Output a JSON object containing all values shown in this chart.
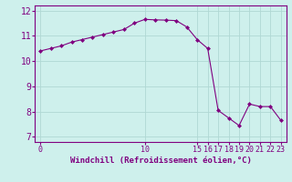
{
  "x": [
    0,
    1,
    2,
    3,
    4,
    5,
    6,
    7,
    8,
    9,
    10,
    11,
    12,
    13,
    14,
    15,
    16,
    17,
    18,
    19,
    20,
    21,
    22,
    23
  ],
  "y": [
    10.4,
    10.5,
    10.6,
    10.75,
    10.85,
    10.95,
    11.05,
    11.15,
    11.25,
    11.5,
    11.65,
    11.63,
    11.62,
    11.6,
    11.35,
    10.85,
    10.5,
    8.05,
    7.75,
    7.45,
    8.3,
    8.2,
    8.2,
    7.65
  ],
  "line_color": "#800080",
  "marker": "D",
  "markersize": 2.0,
  "linewidth": 0.8,
  "background_color": "#cef0ec",
  "grid_color": "#b0d8d4",
  "xlabel": "Windchill (Refroidissement éolien,°C)",
  "xlabel_color": "#800080",
  "tick_color": "#800080",
  "xlim": [
    -0.5,
    23.5
  ],
  "ylim": [
    6.8,
    12.2
  ],
  "yticks": [
    7,
    8,
    9,
    10,
    11,
    12
  ],
  "xticks": [
    0,
    10,
    15,
    16,
    17,
    18,
    19,
    20,
    21,
    22,
    23
  ],
  "xtick_labels": [
    "0",
    "10",
    "15",
    "16",
    "17",
    "18",
    "19",
    "20",
    "21",
    "22",
    "23"
  ],
  "title_color": "#800080",
  "title_fontsize": 5.5,
  "xlabel_fontsize": 6.5,
  "tick_fontsize": 6,
  "ytick_fontsize": 7
}
